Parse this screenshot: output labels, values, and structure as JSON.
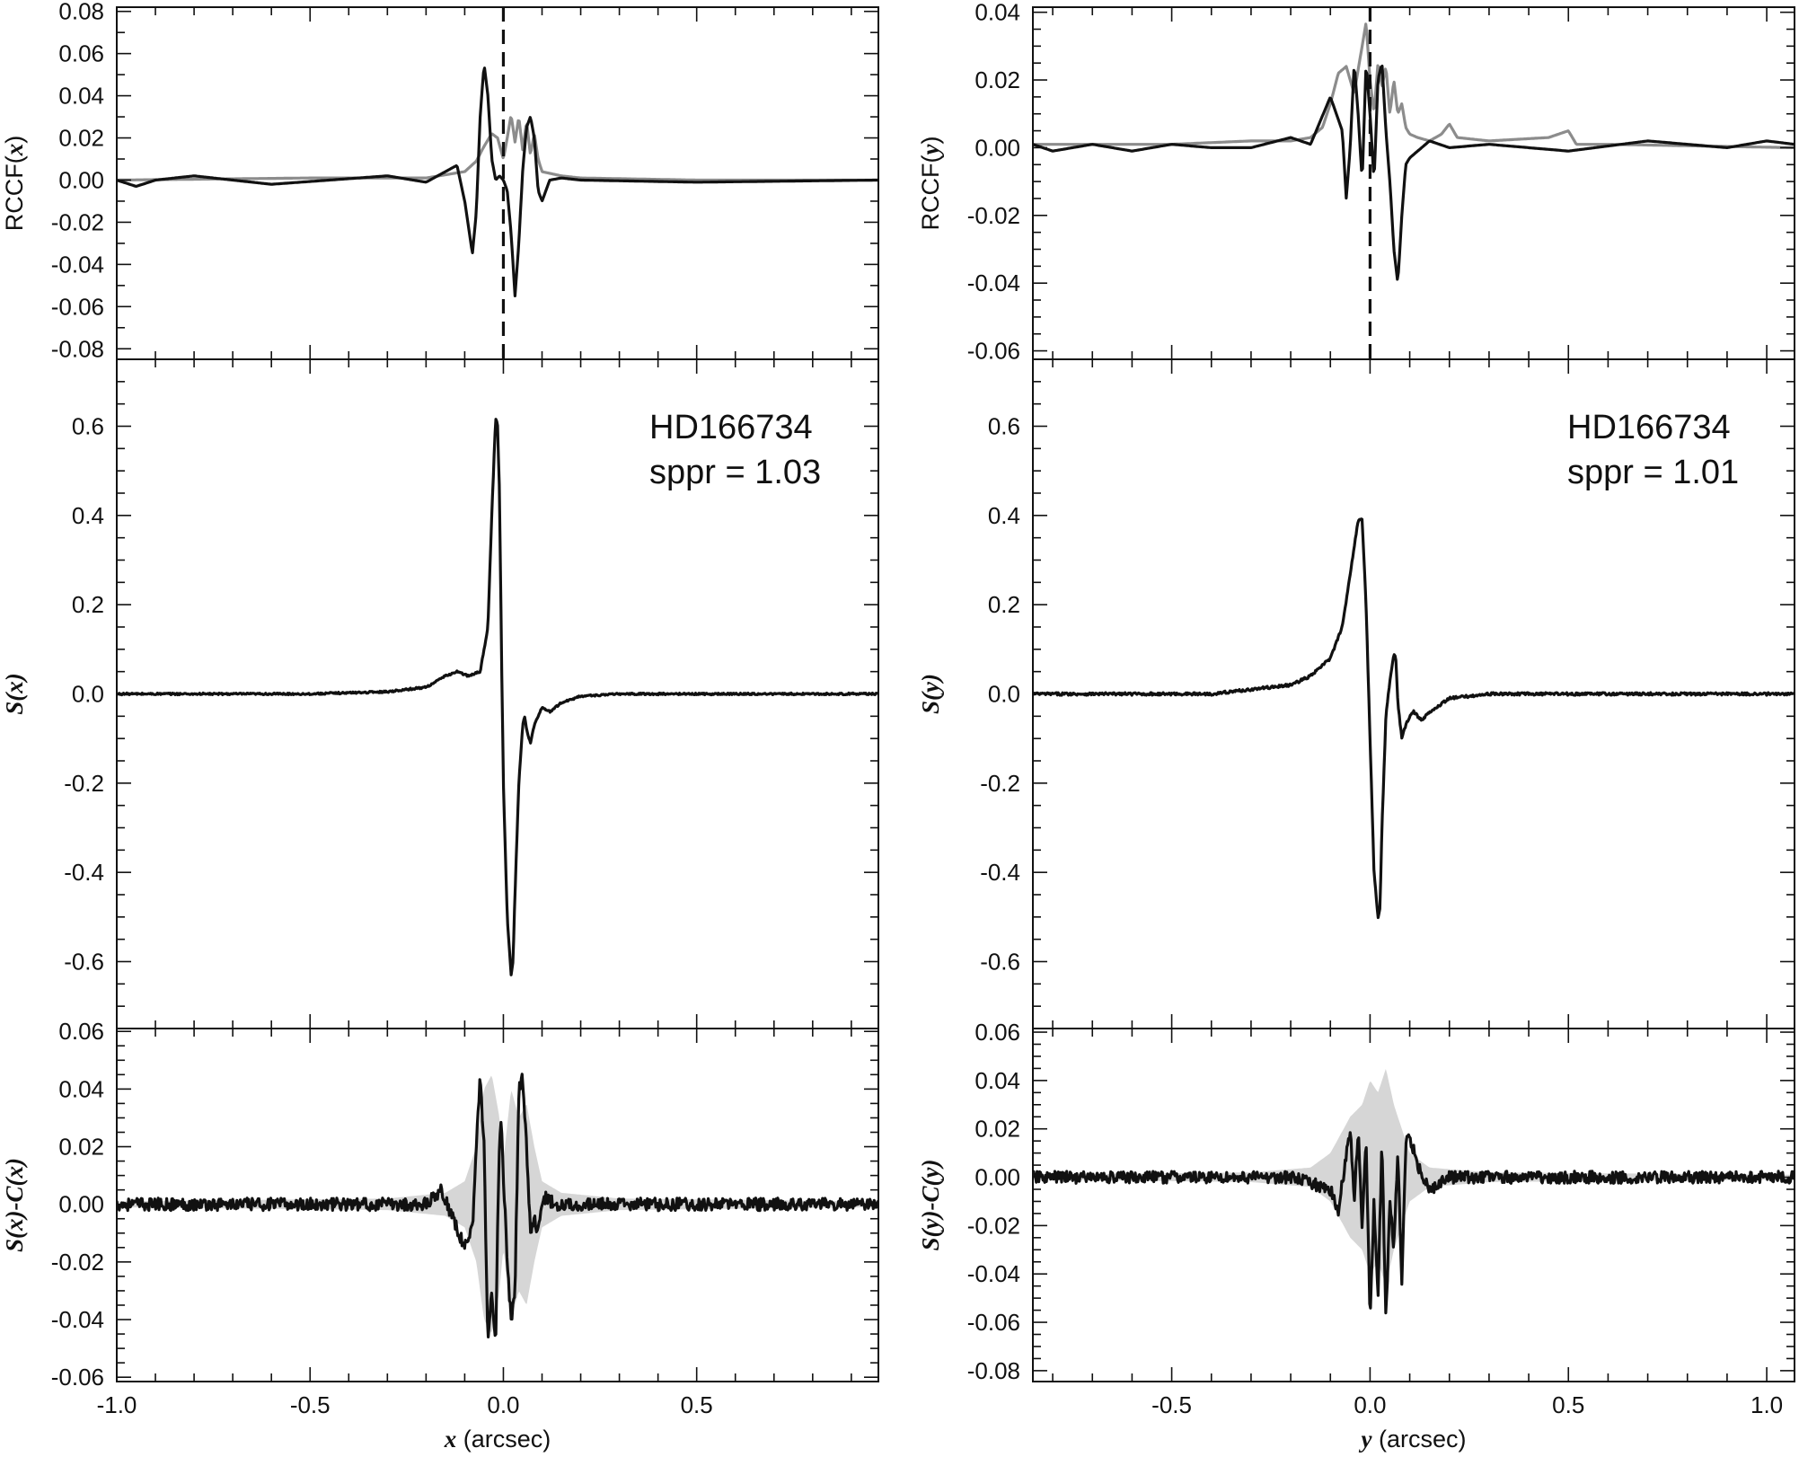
{
  "chart_data": [
    {
      "id": "top_left",
      "type": "line",
      "axis": "x",
      "ylabel": "RCCF(x)",
      "ylabel_parts": [
        "RCCF(",
        "x",
        ")"
      ],
      "xlim": [
        -1.0,
        0.97
      ],
      "ylim": [
        -0.085,
        0.082
      ],
      "yticks": [
        -0.08,
        -0.06,
        -0.04,
        -0.02,
        0.0,
        0.02,
        0.04,
        0.06,
        0.08
      ],
      "ytick_labels": [
        "-0.08",
        "-0.06",
        "-0.04",
        "-0.02",
        "0.00",
        "0.02",
        "0.04",
        "0.06",
        "0.08"
      ],
      "y_minor": 0.01,
      "x_minor": 0.1,
      "x_major": 0.5,
      "vline": 0.0,
      "series": [
        {
          "color": "#8c8c8c",
          "x": [
            -1.0,
            -0.5,
            -0.2,
            -0.1,
            -0.07,
            -0.05,
            -0.03,
            -0.015,
            0.0,
            0.01,
            0.02,
            0.03,
            0.04,
            0.05,
            0.06,
            0.07,
            0.08,
            0.09,
            0.1,
            0.15,
            0.2,
            0.5,
            0.97
          ],
          "y": [
            0.0,
            0.001,
            0.001,
            0.004,
            0.009,
            0.016,
            0.022,
            0.02,
            0.01,
            0.02,
            0.031,
            0.018,
            0.03,
            0.014,
            0.028,
            0.012,
            0.022,
            0.01,
            0.004,
            0.002,
            0.001,
            0.0,
            0.0
          ]
        },
        {
          "color": "#111111",
          "x": [
            -1.0,
            -0.95,
            -0.9,
            -0.8,
            -0.6,
            -0.3,
            -0.2,
            -0.15,
            -0.12,
            -0.1,
            -0.08,
            -0.07,
            -0.06,
            -0.05,
            -0.04,
            -0.03,
            -0.02,
            -0.01,
            0.0,
            0.01,
            0.02,
            0.03,
            0.04,
            0.05,
            0.06,
            0.07,
            0.08,
            0.09,
            0.1,
            0.11,
            0.12,
            0.15,
            0.2,
            0.5,
            0.97
          ],
          "y": [
            0.0,
            -0.003,
            0.0,
            0.002,
            -0.002,
            0.002,
            -0.001,
            0.004,
            0.007,
            -0.01,
            -0.035,
            -0.015,
            0.03,
            0.055,
            0.04,
            0.01,
            0.0,
            0.002,
            0.0,
            -0.005,
            -0.025,
            -0.055,
            -0.03,
            0.005,
            0.025,
            0.03,
            0.02,
            -0.005,
            -0.01,
            -0.005,
            0.0,
            0.001,
            0.0,
            -0.001,
            0.0
          ]
        }
      ]
    },
    {
      "id": "top_right",
      "type": "line",
      "axis": "y",
      "ylabel": "RCCF(y)",
      "ylabel_parts": [
        "RCCF(",
        "y",
        ")"
      ],
      "xlim": [
        -0.85,
        1.07
      ],
      "ylim": [
        -0.0625,
        0.0415
      ],
      "yticks": [
        -0.06,
        -0.04,
        -0.02,
        0.0,
        0.02,
        0.04
      ],
      "ytick_labels": [
        "-0.06",
        "-0.04",
        "-0.02",
        "0.00",
        "0.02",
        "0.04"
      ],
      "y_minor": 0.005,
      "x_minor": 0.1,
      "x_major": 0.5,
      "vline": 0.0,
      "series": [
        {
          "color": "#8c8c8c",
          "x": [
            -0.85,
            -0.5,
            -0.3,
            -0.2,
            -0.15,
            -0.12,
            -0.1,
            -0.08,
            -0.06,
            -0.04,
            -0.02,
            -0.01,
            0.0,
            0.01,
            0.02,
            0.03,
            0.04,
            0.05,
            0.06,
            0.07,
            0.08,
            0.09,
            0.1,
            0.12,
            0.15,
            0.18,
            0.2,
            0.22,
            0.3,
            0.45,
            0.5,
            0.52,
            0.6,
            1.07
          ],
          "y": [
            0.001,
            0.001,
            0.002,
            0.002,
            0.003,
            0.006,
            0.013,
            0.022,
            0.024,
            0.016,
            0.03,
            0.037,
            0.02,
            0.01,
            0.025,
            0.018,
            0.024,
            0.01,
            0.02,
            0.01,
            0.013,
            0.006,
            0.004,
            0.003,
            0.002,
            0.004,
            0.007,
            0.003,
            0.002,
            0.003,
            0.005,
            0.001,
            0.001,
            0.0
          ]
        },
        {
          "color": "#111111",
          "x": [
            -0.85,
            -0.8,
            -0.7,
            -0.6,
            -0.5,
            -0.4,
            -0.3,
            -0.2,
            -0.15,
            -0.1,
            -0.07,
            -0.06,
            -0.05,
            -0.04,
            -0.03,
            -0.02,
            -0.01,
            0.0,
            0.01,
            0.02,
            0.03,
            0.04,
            0.05,
            0.06,
            0.07,
            0.08,
            0.09,
            0.1,
            0.12,
            0.15,
            0.2,
            0.3,
            0.5,
            0.7,
            0.9,
            1.0,
            1.07
          ],
          "y": [
            0.001,
            -0.001,
            0.001,
            -0.001,
            0.001,
            0.0,
            0.0,
            0.003,
            0.001,
            0.015,
            0.005,
            -0.015,
            0.0,
            0.025,
            0.01,
            -0.01,
            0.025,
            0.01,
            -0.01,
            0.02,
            0.025,
            0.005,
            -0.01,
            -0.03,
            -0.04,
            -0.02,
            -0.005,
            -0.003,
            -0.001,
            0.002,
            0.0,
            0.001,
            -0.001,
            0.002,
            0.0,
            0.002,
            0.001
          ]
        }
      ]
    },
    {
      "id": "mid_left",
      "type": "line",
      "axis": "x",
      "ylabel": "S(x)",
      "ylabel_parts": [
        "",
        "S(x)",
        ""
      ],
      "xlim": [
        -1.0,
        0.97
      ],
      "ylim": [
        -0.75,
        0.75
      ],
      "yticks": [
        -0.6,
        -0.4,
        -0.2,
        0.0,
        0.2,
        0.4,
        0.6
      ],
      "ytick_labels": [
        "-0.6",
        "-0.4",
        "-0.2",
        "0.0",
        "0.2",
        "0.4",
        "0.6"
      ],
      "y_minor": 0.05,
      "x_minor": 0.1,
      "x_major": 0.5,
      "annotation": [
        "HD166734",
        "sppr = 1.03"
      ],
      "series": [
        {
          "color": "#111111",
          "noise": 0.002,
          "x": [
            -1.0,
            -0.5,
            -0.3,
            -0.2,
            -0.15,
            -0.12,
            -0.09,
            -0.06,
            -0.04,
            -0.03,
            -0.02,
            -0.015,
            -0.01,
            -0.005,
            0.0,
            0.01,
            0.02,
            0.025,
            0.03,
            0.04,
            0.05,
            0.055,
            0.06,
            0.07,
            0.08,
            0.1,
            0.12,
            0.15,
            0.2,
            0.3,
            0.97
          ],
          "y": [
            0.0,
            0.0,
            0.005,
            0.015,
            0.04,
            0.05,
            0.04,
            0.05,
            0.15,
            0.4,
            0.62,
            0.6,
            0.45,
            0.1,
            -0.2,
            -0.5,
            -0.63,
            -0.6,
            -0.45,
            -0.2,
            -0.07,
            -0.05,
            -0.08,
            -0.11,
            -0.07,
            -0.03,
            -0.04,
            -0.02,
            -0.005,
            0.0,
            0.0
          ]
        }
      ]
    },
    {
      "id": "mid_right",
      "type": "line",
      "axis": "y",
      "ylabel": "S(y)",
      "ylabel_parts": [
        "",
        "S(y)",
        ""
      ],
      "xlim": [
        -0.85,
        1.07
      ],
      "ylim": [
        -0.75,
        0.75
      ],
      "yticks": [
        -0.6,
        -0.4,
        -0.2,
        0.0,
        0.2,
        0.4,
        0.6
      ],
      "ytick_labels": [
        "-0.6",
        "-0.4",
        "-0.2",
        "0.0",
        "0.2",
        "0.4",
        "0.6"
      ],
      "y_minor": 0.05,
      "x_minor": 0.1,
      "x_major": 0.5,
      "annotation": [
        "HD166734",
        "sppr = 1.01"
      ],
      "series": [
        {
          "color": "#111111",
          "noise": 0.003,
          "x": [
            -0.85,
            -0.4,
            -0.2,
            -0.15,
            -0.1,
            -0.07,
            -0.05,
            -0.03,
            -0.02,
            -0.01,
            0.0,
            0.01,
            0.02,
            0.025,
            0.03,
            0.04,
            0.05,
            0.06,
            0.065,
            0.07,
            0.08,
            0.09,
            0.1,
            0.11,
            0.13,
            0.15,
            0.2,
            0.3,
            1.07
          ],
          "y": [
            0.0,
            0.0,
            0.02,
            0.04,
            0.08,
            0.15,
            0.27,
            0.39,
            0.39,
            0.2,
            -0.1,
            -0.4,
            -0.5,
            -0.48,
            -0.3,
            -0.05,
            0.03,
            0.09,
            0.08,
            -0.02,
            -0.1,
            -0.07,
            -0.05,
            -0.04,
            -0.06,
            -0.04,
            -0.01,
            0.0,
            0.0
          ]
        }
      ]
    },
    {
      "id": "bot_left",
      "type": "line",
      "axis": "x",
      "ylabel": "S(x)-C(x)",
      "ylabel_parts": [
        "",
        "S(x)-C(x)",
        ""
      ],
      "xlabel": "x (arcsec)",
      "xlabel_parts": [
        "x",
        " (arcsec)"
      ],
      "xlim": [
        -1.0,
        0.97
      ],
      "ylim": [
        -0.0615,
        0.061
      ],
      "yticks": [
        -0.06,
        -0.04,
        -0.02,
        0.0,
        0.02,
        0.04,
        0.06
      ],
      "ytick_labels": [
        "-0.06",
        "-0.04",
        "-0.02",
        "0.00",
        "0.02",
        "0.04",
        "0.06"
      ],
      "xticks": [
        -1.0,
        -0.5,
        0.0,
        0.5
      ],
      "xtick_labels": [
        "-1.0",
        "-0.5",
        "0.0",
        "0.5"
      ],
      "y_minor": 0.005,
      "x_minor": 0.1,
      "x_major": 0.5,
      "band": {
        "color": "#d6d6d6",
        "x": [
          -1.0,
          -0.3,
          -0.15,
          -0.1,
          -0.07,
          -0.05,
          -0.03,
          -0.01,
          0.0,
          0.02,
          0.04,
          0.06,
          0.08,
          0.1,
          0.15,
          0.3,
          0.97
        ],
        "half_width": [
          0.001,
          0.002,
          0.004,
          0.008,
          0.02,
          0.04,
          0.045,
          0.03,
          0.015,
          0.04,
          0.03,
          0.035,
          0.02,
          0.008,
          0.004,
          0.002,
          0.001
        ]
      },
      "series": [
        {
          "color": "#111111",
          "noise": 0.0022,
          "x": [
            -1.0,
            -0.5,
            -0.2,
            -0.18,
            -0.16,
            -0.13,
            -0.1,
            -0.08,
            -0.07,
            -0.06,
            -0.05,
            -0.04,
            -0.03,
            -0.02,
            -0.015,
            -0.01,
            -0.005,
            0.0,
            0.01,
            0.02,
            0.03,
            0.04,
            0.05,
            0.06,
            0.07,
            0.08,
            0.09,
            0.1,
            0.11,
            0.13,
            0.2,
            0.97
          ],
          "y": [
            0.0,
            0.0,
            0.0,
            0.003,
            0.005,
            -0.005,
            -0.015,
            -0.008,
            0.02,
            0.045,
            0.02,
            -0.048,
            -0.03,
            -0.05,
            -0.01,
            0.02,
            0.03,
            0.01,
            -0.02,
            -0.04,
            -0.03,
            0.04,
            0.044,
            0.02,
            -0.01,
            -0.005,
            -0.01,
            0.0,
            0.003,
            0.0,
            0.0,
            0.0
          ]
        }
      ]
    },
    {
      "id": "bot_right",
      "type": "line",
      "axis": "y",
      "ylabel": "S(y)-C(y)",
      "ylabel_parts": [
        "",
        "S(y)-C(y)",
        ""
      ],
      "xlabel": "y (arcsec)",
      "xlabel_parts": [
        "y",
        " (arcsec)"
      ],
      "xlim": [
        -0.85,
        1.07
      ],
      "ylim": [
        -0.0845,
        0.0615
      ],
      "yticks": [
        -0.08,
        -0.06,
        -0.04,
        -0.02,
        0.0,
        0.02,
        0.04,
        0.06
      ],
      "ytick_labels": [
        "-0.08",
        "-0.06",
        "-0.04",
        "-0.02",
        "0.00",
        "0.02",
        "0.04",
        "0.06"
      ],
      "xticks": [
        -0.5,
        0.0,
        0.5,
        1.0
      ],
      "xtick_labels": [
        "-0.5",
        "0.0",
        "0.5",
        "1.0"
      ],
      "y_minor": 0.005,
      "x_minor": 0.1,
      "x_major": 0.5,
      "band": {
        "color": "#d6d6d6",
        "x": [
          -0.85,
          -0.3,
          -0.15,
          -0.1,
          -0.05,
          -0.02,
          0.0,
          0.02,
          0.04,
          0.06,
          0.08,
          0.1,
          0.15,
          0.3,
          1.07
        ],
        "half_width": [
          0.001,
          0.002,
          0.004,
          0.01,
          0.025,
          0.03,
          0.04,
          0.035,
          0.045,
          0.03,
          0.02,
          0.01,
          0.004,
          0.002,
          0.001
        ]
      },
      "series": [
        {
          "color": "#111111",
          "noise": 0.0025,
          "x": [
            -0.85,
            -0.5,
            -0.2,
            -0.1,
            -0.08,
            -0.06,
            -0.05,
            -0.04,
            -0.03,
            -0.02,
            -0.01,
            0.0,
            0.01,
            0.02,
            0.03,
            0.04,
            0.05,
            0.06,
            0.07,
            0.08,
            0.09,
            0.1,
            0.12,
            0.15,
            0.2,
            1.07
          ],
          "y": [
            0.0,
            0.0,
            0.0,
            -0.005,
            -0.015,
            0.01,
            0.02,
            -0.01,
            0.02,
            -0.02,
            0.015,
            -0.058,
            -0.01,
            -0.05,
            0.015,
            -0.06,
            -0.01,
            -0.03,
            0.01,
            -0.045,
            0.015,
            0.017,
            0.005,
            -0.005,
            0.0,
            0.0
          ]
        }
      ]
    }
  ]
}
